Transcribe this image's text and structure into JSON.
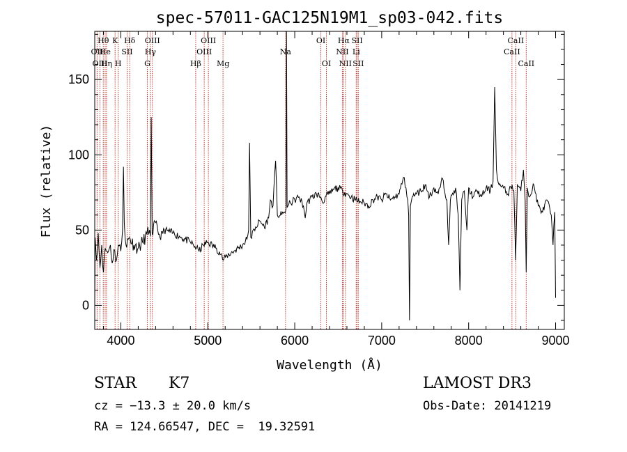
{
  "chart_data": {
    "type": "line",
    "title": "spec-57011-GAC125N19M1_sp03-042.fits",
    "xlabel": "Wavelength (Å)",
    "ylabel": "Flux (relative)",
    "xlim": [
      3700,
      9100
    ],
    "ylim": [
      -16,
      182
    ],
    "xticks": [
      4000,
      5000,
      6000,
      7000,
      8000,
      9000
    ],
    "yticks": [
      0,
      50,
      100,
      150
    ],
    "spectrum_anchors": [
      [
        3700,
        0
      ],
      [
        3705,
        45
      ],
      [
        3720,
        30
      ],
      [
        3740,
        48
      ],
      [
        3760,
        25
      ],
      [
        3780,
        40
      ],
      [
        3800,
        22
      ],
      [
        3820,
        38
      ],
      [
        3850,
        35
      ],
      [
        3880,
        40
      ],
      [
        3900,
        28
      ],
      [
        3920,
        37
      ],
      [
        3950,
        30
      ],
      [
        3970,
        40
      ],
      [
        4000,
        36
      ],
      [
        4020,
        50
      ],
      [
        4030,
        92
      ],
      [
        4040,
        55
      ],
      [
        4060,
        40
      ],
      [
        4100,
        45
      ],
      [
        4150,
        40
      ],
      [
        4200,
        38
      ],
      [
        4250,
        42
      ],
      [
        4300,
        47
      ],
      [
        4330,
        50
      ],
      [
        4340,
        46
      ],
      [
        4350,
        125
      ],
      [
        4360,
        48
      ],
      [
        4400,
        55
      ],
      [
        4450,
        45
      ],
      [
        4500,
        50
      ],
      [
        4600,
        48
      ],
      [
        4700,
        45
      ],
      [
        4800,
        42
      ],
      [
        4870,
        38
      ],
      [
        4900,
        36
      ],
      [
        4950,
        40
      ],
      [
        5000,
        42
      ],
      [
        5050,
        40
      ],
      [
        5100,
        38
      ],
      [
        5150,
        34
      ],
      [
        5180,
        30
      ],
      [
        5220,
        33
      ],
      [
        5300,
        36
      ],
      [
        5400,
        40
      ],
      [
        5450,
        44
      ],
      [
        5470,
        50
      ],
      [
        5480,
        108
      ],
      [
        5495,
        45
      ],
      [
        5550,
        52
      ],
      [
        5600,
        56
      ],
      [
        5650,
        52
      ],
      [
        5700,
        58
      ],
      [
        5720,
        70
      ],
      [
        5750,
        66
      ],
      [
        5780,
        96
      ],
      [
        5800,
        60
      ],
      [
        5850,
        60
      ],
      [
        5880,
        62
      ],
      [
        5900,
        64
      ],
      [
        5906,
        182
      ],
      [
        5912,
        65
      ],
      [
        5950,
        68
      ],
      [
        6000,
        70
      ],
      [
        6050,
        72
      ],
      [
        6100,
        66
      ],
      [
        6120,
        58
      ],
      [
        6140,
        68
      ],
      [
        6200,
        72
      ],
      [
        6250,
        74
      ],
      [
        6300,
        72
      ],
      [
        6320,
        68
      ],
      [
        6350,
        72
      ],
      [
        6400,
        74
      ],
      [
        6450,
        77
      ],
      [
        6500,
        78
      ],
      [
        6550,
        76
      ],
      [
        6600,
        74
      ],
      [
        6650,
        72
      ],
      [
        6700,
        70
      ],
      [
        6750,
        69
      ],
      [
        6800,
        68
      ],
      [
        6850,
        66
      ],
      [
        6900,
        70
      ],
      [
        6950,
        72
      ],
      [
        7000,
        70
      ],
      [
        7050,
        74
      ],
      [
        7100,
        70
      ],
      [
        7150,
        72
      ],
      [
        7200,
        74
      ],
      [
        7250,
        85
      ],
      [
        7280,
        78
      ],
      [
        7300,
        70
      ],
      [
        7310,
        60
      ],
      [
        7320,
        -10
      ],
      [
        7330,
        66
      ],
      [
        7350,
        72
      ],
      [
        7400,
        74
      ],
      [
        7450,
        76
      ],
      [
        7500,
        80
      ],
      [
        7550,
        72
      ],
      [
        7600,
        78
      ],
      [
        7650,
        74
      ],
      [
        7700,
        84
      ],
      [
        7750,
        70
      ],
      [
        7770,
        40
      ],
      [
        7790,
        70
      ],
      [
        7850,
        78
      ],
      [
        7880,
        60
      ],
      [
        7900,
        10
      ],
      [
        7920,
        70
      ],
      [
        7950,
        76
      ],
      [
        7980,
        50
      ],
      [
        8000,
        78
      ],
      [
        8050,
        72
      ],
      [
        8100,
        76
      ],
      [
        8150,
        72
      ],
      [
        8200,
        78
      ],
      [
        8250,
        76
      ],
      [
        8280,
        82
      ],
      [
        8300,
        145
      ],
      [
        8320,
        90
      ],
      [
        8350,
        80
      ],
      [
        8400,
        78
      ],
      [
        8450,
        74
      ],
      [
        8500,
        80
      ],
      [
        8520,
        76
      ],
      [
        8540,
        30
      ],
      [
        8560,
        80
      ],
      [
        8600,
        76
      ],
      [
        8630,
        90
      ],
      [
        8650,
        70
      ],
      [
        8662,
        22
      ],
      [
        8675,
        78
      ],
      [
        8700,
        72
      ],
      [
        8750,
        80
      ],
      [
        8800,
        66
      ],
      [
        8850,
        62
      ],
      [
        8900,
        70
      ],
      [
        8950,
        60
      ],
      [
        8970,
        40
      ],
      [
        8990,
        62
      ],
      [
        9000,
        5
      ]
    ],
    "lines": [
      {
        "label": "Hθ",
        "x": 3798,
        "row": 1
      },
      {
        "label": "OII",
        "x": 3727,
        "row": 2
      },
      {
        "label": "OIII",
        "x": 3760,
        "row": 3
      },
      {
        "label": "He",
        "x": 3820,
        "row": 2
      },
      {
        "label": "Hη",
        "x": 3835,
        "row": 3
      },
      {
        "label": "K",
        "x": 3934,
        "row": 1
      },
      {
        "label": "H",
        "x": 3970,
        "row": 3
      },
      {
        "label": "SII",
        "x": 4072,
        "row": 2
      },
      {
        "label": "Hδ",
        "x": 4102,
        "row": 1
      },
      {
        "label": "OIII",
        "x": 4363,
        "row": 1
      },
      {
        "label": "Hγ",
        "x": 4340,
        "row": 2
      },
      {
        "label": "G",
        "x": 4305,
        "row": 3
      },
      {
        "label": "Hβ",
        "x": 4861,
        "row": 3
      },
      {
        "label": "OIII",
        "x": 4959,
        "row": 2
      },
      {
        "label": "OIII",
        "x": 5007,
        "row": 1
      },
      {
        "label": "Mg",
        "x": 5175,
        "row": 3
      },
      {
        "label": "Na",
        "x": 5894,
        "row": 2
      },
      {
        "label": "OI",
        "x": 6300,
        "row": 1
      },
      {
        "label": "OI",
        "x": 6364,
        "row": 3
      },
      {
        "label": "NII",
        "x": 6548,
        "row": 2
      },
      {
        "label": "Hα",
        "x": 6563,
        "row": 1
      },
      {
        "label": "NII",
        "x": 6583,
        "row": 3
      },
      {
        "label": "Li",
        "x": 6707,
        "row": 2
      },
      {
        "label": "SII",
        "x": 6717,
        "row": 1
      },
      {
        "label": "SII",
        "x": 6731,
        "row": 3
      },
      {
        "label": "CaII",
        "x": 8498,
        "row": 2
      },
      {
        "label": "CaII",
        "x": 8542,
        "row": 1
      },
      {
        "label": "CaII",
        "x": 8662,
        "row": 3
      }
    ]
  },
  "info": {
    "object_type": "STAR",
    "subclass": "K7",
    "survey": "LAMOST DR3",
    "cz_text": "cz = −13.3 ± 20.0 km/s",
    "obs_date": "Obs-Date: 20141219",
    "radec": "RA = 124.66547, DEC =  19.32591"
  },
  "colors": {
    "line_marker": "#c0392b",
    "spectrum": "#000000"
  }
}
